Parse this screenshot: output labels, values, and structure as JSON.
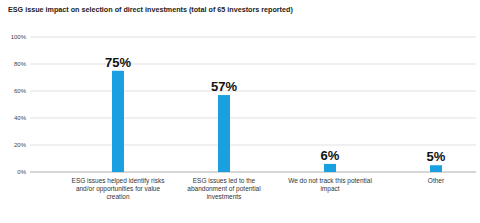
{
  "chart_data": {
    "type": "bar",
    "title": "ESG issue impact on selection of direct investments (total of 65 investors reported)",
    "categories": [
      "ESG issues helped identify risks and/or opportunities for value creation",
      "ESG issues led to the abandonment of potential investments",
      "We do not track this potential impact",
      "Other"
    ],
    "values": [
      75,
      57,
      6,
      5
    ],
    "value_labels": [
      "75%",
      "57%",
      "6%",
      "5%"
    ],
    "color": "#1a9fe0",
    "ylim": [
      0,
      100
    ],
    "yticks": [
      {
        "value": 0,
        "label": "0%"
      },
      {
        "value": 20,
        "label": "20%"
      },
      {
        "value": 40,
        "label": "40%"
      },
      {
        "value": 60,
        "label": "60%"
      },
      {
        "value": 80,
        "label": "80%"
      },
      {
        "value": 100,
        "label": "100%"
      }
    ],
    "grid": true,
    "data_labels": true
  }
}
